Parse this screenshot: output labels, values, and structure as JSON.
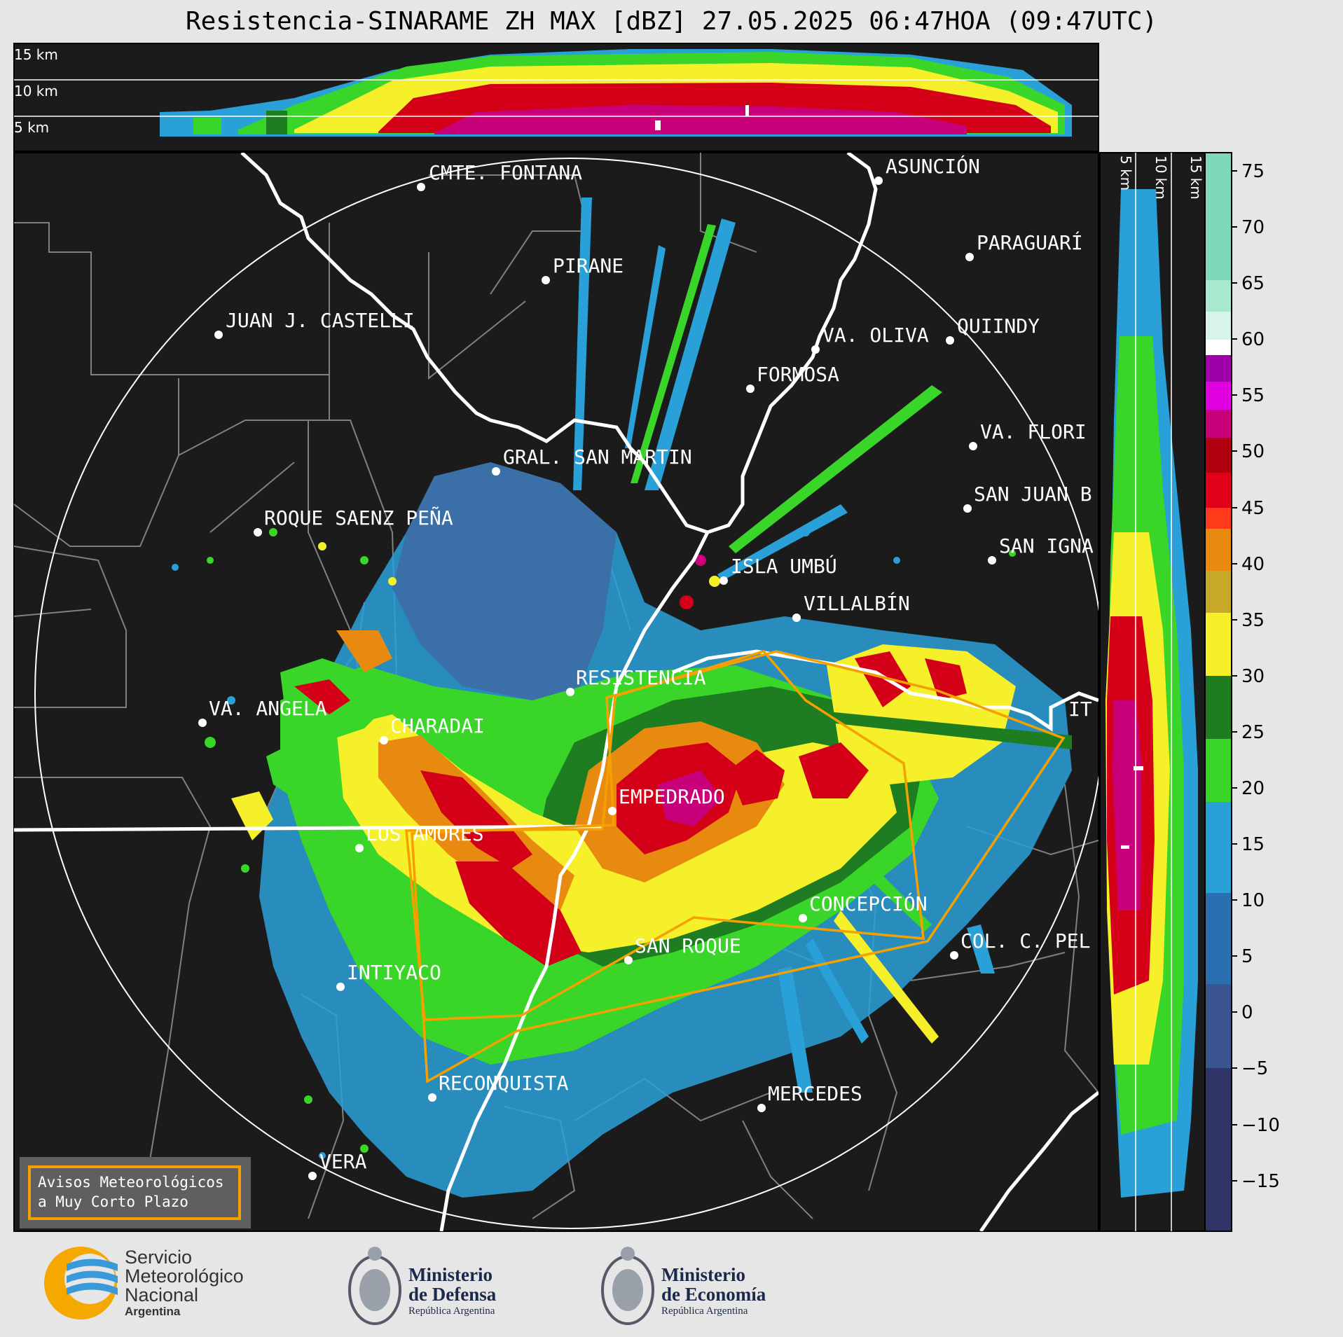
{
  "title": "Resistencia-SINARAME ZH MAX [dBZ] 27.05.2025 06:47HOA (09:47UTC)",
  "top_section": {
    "altitude_labels": [
      "15 km",
      "10 km",
      "5 km"
    ]
  },
  "side_section": {
    "altitude_labels": [
      "5 km",
      "10 km",
      "15 km"
    ]
  },
  "colorbar": {
    "unit": "dBZ",
    "ticks": [
      "75",
      "70",
      "65",
      "60",
      "55",
      "50",
      "45",
      "40",
      "35",
      "30",
      "25",
      "20",
      "15",
      "10",
      "5",
      "0",
      "−5",
      "−10",
      "−15"
    ],
    "colors": {
      "-15_-5": "#2f3566",
      "-5_0": "#3a5590",
      "0_10": "#2b6fb0",
      "10_18": "#2aa0d8",
      "18_22": "#39d629",
      "22_30": "#1d7d20",
      "30_35": "#f5f02a",
      "35_40": "#c8a828",
      "40_43": "#e88a10",
      "43_50": "#d40018",
      "50_55": "#c8007a",
      "55_58": "#a000a8",
      "58_62": "#ffffff",
      "62_77": "#7fd8b8"
    }
  },
  "map": {
    "background": "#1b1b1b",
    "range_ring_color": "#ffffff",
    "warning_polygon_color": "#f5a000",
    "cities": [
      "CMTE. FONTANA",
      "PIRANE",
      "JUAN J. CASTELLI",
      "ASUNCIÓN",
      "PARAGUARÍ",
      "VA. OLIVA",
      "QUIINDY",
      "FORMOSA",
      "VA. FLORI",
      "GRAL. SAN MARTIN",
      "SAN JUAN B",
      "ROQUE SAENZ PEÑA",
      "SAN IGNA",
      "ISLA UMBÚ",
      "VILLALBÍN",
      "RESISTENCIA",
      "VA. ANGELA",
      "CHARADAI",
      "IT",
      "EMPEDRADO",
      "LOS AMORES",
      "CONCEPCIÓN",
      "SAN ROQUE",
      "COL. C. PEL",
      "INTIYACO",
      "RECONQUISTA",
      "MERCEDES",
      "VERA"
    ]
  },
  "legend": {
    "line1": "Avisos Meteorológicos",
    "line2": "a Muy Corto Plazo"
  },
  "logos": {
    "smn": {
      "line1": "Servicio",
      "line2": "Meteorológico",
      "line3": "Nacional",
      "line4": "Argentina"
    },
    "defensa": {
      "line1": "Ministerio",
      "line2": "de Defensa",
      "line3": "República Argentina"
    },
    "economia": {
      "line1": "Ministerio",
      "line2": "de Economía",
      "line3": "República Argentina"
    }
  }
}
